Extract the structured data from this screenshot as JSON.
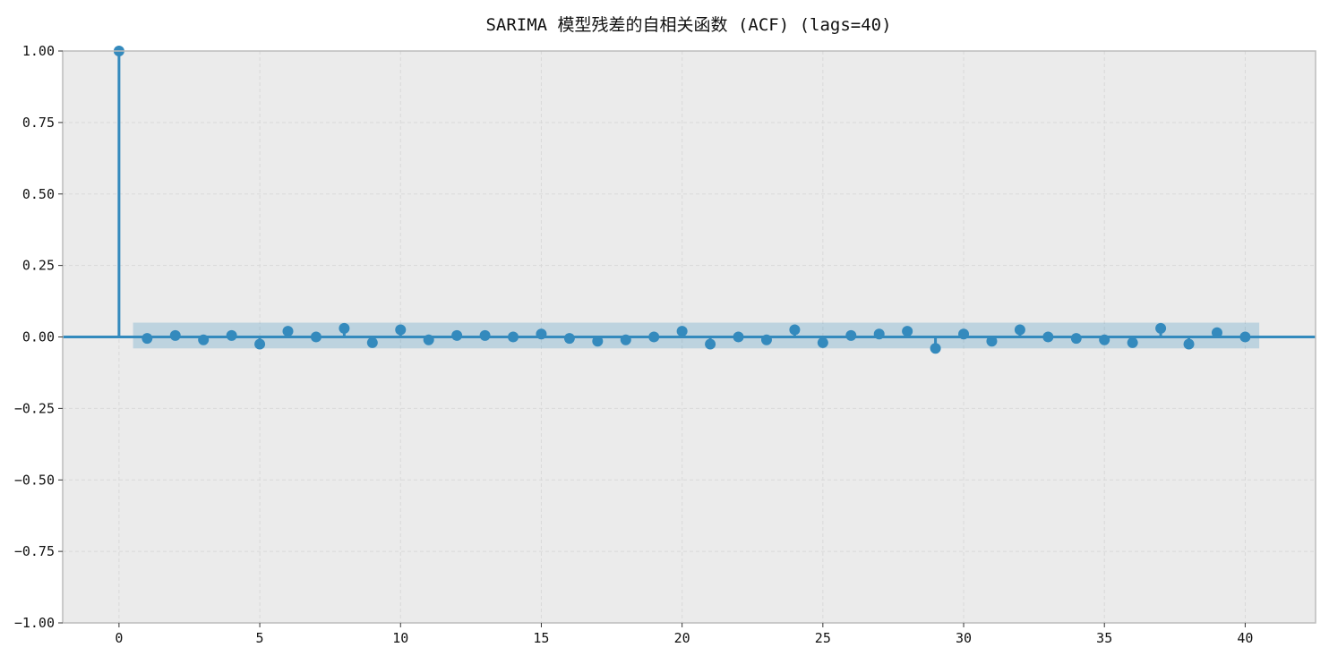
{
  "chart_data": {
    "type": "stem",
    "title": "SARIMA 模型残差的自相关函数 (ACF) (lags=40)",
    "xlabel": "",
    "ylabel": "",
    "xlim": [
      -2,
      42.5
    ],
    "ylim": [
      -1.0,
      1.0
    ],
    "x_ticks": [
      0,
      5,
      10,
      15,
      20,
      25,
      30,
      35,
      40
    ],
    "x_tick_labels": [
      "0",
      "5",
      "10",
      "15",
      "20",
      "25",
      "30",
      "35",
      "40"
    ],
    "y_ticks": [
      1.0,
      0.75,
      0.5,
      0.25,
      0.0,
      -0.25,
      -0.5,
      -0.75,
      -1.0
    ],
    "y_tick_labels": [
      "1.00",
      "0.75",
      "0.50",
      "0.25",
      "0.00",
      "−0.25",
      "−0.50",
      "−0.75",
      "−1.00"
    ],
    "grid": true,
    "confidence_band": {
      "x_start": 0.5,
      "x_end": 40.5,
      "lower": -0.04,
      "upper": 0.05
    },
    "lags": [
      0,
      1,
      2,
      3,
      4,
      5,
      6,
      7,
      8,
      9,
      10,
      11,
      12,
      13,
      14,
      15,
      16,
      17,
      18,
      19,
      20,
      21,
      22,
      23,
      24,
      25,
      26,
      27,
      28,
      29,
      30,
      31,
      32,
      33,
      34,
      35,
      36,
      37,
      38,
      39,
      40
    ],
    "acf": [
      1.0,
      -0.005,
      0.005,
      -0.01,
      0.005,
      -0.025,
      0.02,
      0.0,
      0.03,
      -0.02,
      0.025,
      -0.01,
      0.005,
      0.005,
      0.0,
      0.01,
      -0.005,
      -0.015,
      -0.01,
      0.0,
      0.02,
      -0.025,
      0.0,
      -0.01,
      0.025,
      -0.02,
      0.005,
      0.01,
      0.02,
      -0.04,
      0.01,
      -0.015,
      0.025,
      0.0,
      -0.005,
      -0.01,
      -0.02,
      0.03,
      -0.025,
      0.015,
      0.0
    ],
    "colors": {
      "stem": "#348abd",
      "band": "#348abd",
      "plot_background": "#ebebeb",
      "grid": "#d9d9d9",
      "frame": "#bcbcbc"
    }
  }
}
